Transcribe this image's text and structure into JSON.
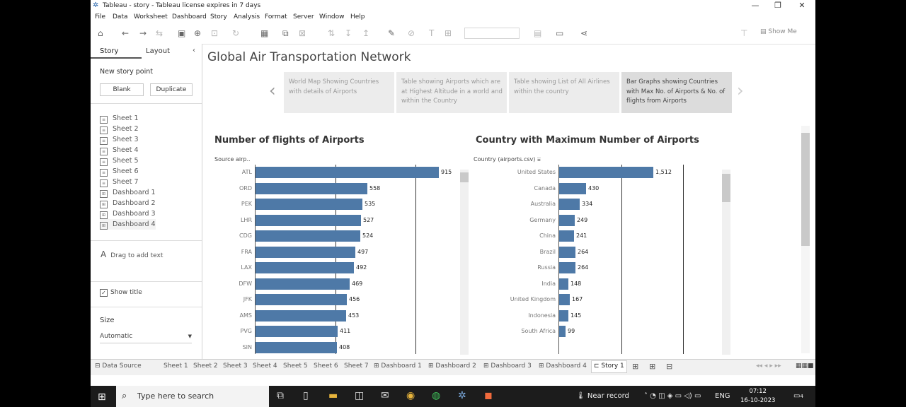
{
  "window": {
    "title": "Tableau - story - Tableau license expires in 7 days",
    "minimize": "—",
    "restore": "❐",
    "close": "✕"
  },
  "menu": [
    "File",
    "Data",
    "Worksheet",
    "Dashboard",
    "Story",
    "Analysis",
    "Format",
    "Server",
    "Window",
    "Help"
  ],
  "toolbar": {
    "show_me": "Show Me"
  },
  "story_pane": {
    "tab_story": "Story",
    "tab_layout": "Layout",
    "new_story_point": "New story point",
    "blank_label": "Blank",
    "duplicate_label": "Duplicate",
    "sheets": [
      "Sheet 1",
      "Sheet 2",
      "Sheet 3",
      "Sheet 4",
      "Sheet 5",
      "Sheet 6",
      "Sheet 7",
      "Dashboard 1",
      "Dashboard 2",
      "Dashboard 3",
      "Dashboard 4"
    ],
    "drag_text": "Drag to add text",
    "show_title": "Show title",
    "size_label": "Size",
    "size_value": "Automatic"
  },
  "story": {
    "title": "Global Air Transportation Network",
    "points": [
      "World Map Showing Countries with details of Airports",
      "Table showing Airports which are at Highest Altitude in a world and within the Country",
      "Table showing List of All Airlines within the country",
      "Bar Graphs showing Countries with Max No. of Airports & No. of flights from Airports"
    ],
    "active_point": 3
  },
  "chart_data": [
    {
      "type": "bar",
      "orientation": "horizontal",
      "title": "Number of flights of Airports",
      "ylabel": "Source airp..",
      "categories": [
        "ATL",
        "ORD",
        "PEK",
        "LHR",
        "CDG",
        "FRA",
        "LAX",
        "DFW",
        "JFK",
        "AMS",
        "PVG",
        "SIN"
      ],
      "values": [
        915,
        558,
        535,
        527,
        524,
        497,
        492,
        469,
        456,
        453,
        411,
        408
      ],
      "xlim": [
        0,
        1000
      ],
      "gridlines": [
        400,
        800
      ],
      "data_labels": true,
      "color": "#4e79a7"
    },
    {
      "type": "bar",
      "orientation": "horizontal",
      "title": "Country with Maximum Number of Airports",
      "ylabel": "Country (airports.csv)",
      "categories": [
        "United States",
        "Canada",
        "Australia",
        "Germany",
        "China",
        "Brazil",
        "Russia",
        "India",
        "United Kingdom",
        "Indonesia",
        "South Africa"
      ],
      "values": [
        1512,
        430,
        334,
        249,
        241,
        264,
        264,
        148,
        167,
        145,
        99
      ],
      "xlim": [
        0,
        2600
      ],
      "gridlines": [
        1000,
        2000
      ],
      "data_labels": true,
      "color": "#4e79a7"
    }
  ],
  "sheet_tabs": [
    "Data Source",
    "Sheet 1",
    "Sheet 2",
    "Sheet 3",
    "Sheet 4",
    "Sheet 5",
    "Sheet 6",
    "Sheet 7",
    "Dashboard 1",
    "Dashboard 2",
    "Dashboard 3",
    "Dashboard 4",
    "Story 1"
  ],
  "active_sheet_tab": "Story 1",
  "taskbar": {
    "search_placeholder": "Type here to search",
    "weather": "Near record",
    "language": "ENG",
    "time": "07:12",
    "date": "16-10-2023",
    "notification_count": "4"
  }
}
